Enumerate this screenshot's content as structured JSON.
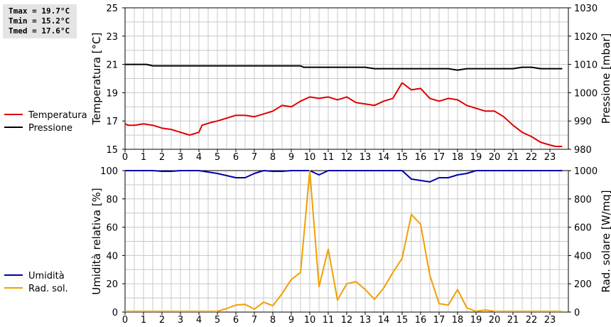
{
  "stats": {
    "tmax": "Tmax = 19.7°C",
    "tmin": "Tmin = 15.2°C",
    "tmed": "Tmed = 17.6°C"
  },
  "colors": {
    "temperatura": "#dd0000",
    "pressione": "#000000",
    "umidita": "#0000aa",
    "rad_sol": "#f0a000",
    "grid": "#c8c8c8"
  },
  "chart_data": [
    {
      "type": "line",
      "xlim": [
        0,
        24
      ],
      "x_ticks": [
        "0",
        "1",
        "2",
        "3",
        "4",
        "5",
        "6",
        "7",
        "8",
        "9",
        "10",
        "11",
        "12",
        "13",
        "14",
        "15",
        "16",
        "17",
        "18",
        "19",
        "20",
        "21",
        "22",
        "23"
      ],
      "ylabel": "Temperatura [°C]",
      "ylim": [
        15,
        25
      ],
      "y_ticks": [
        "15",
        "17",
        "19",
        "21",
        "23",
        "25"
      ],
      "y2label": "Pressione [mbar]",
      "y2lim": [
        980,
        1030
      ],
      "y2_ticks": [
        "980",
        "990",
        "1000",
        "1010",
        "1020",
        "1030"
      ],
      "grid": true,
      "series": [
        {
          "name": "Temperatura",
          "axis": "left",
          "x": [
            0,
            0.17,
            0.5,
            1,
            1.5,
            2,
            2.5,
            3,
            3.5,
            4,
            4.17,
            4.67,
            5,
            5.5,
            6,
            6.5,
            7,
            7.5,
            8,
            8.5,
            9,
            9.5,
            10,
            10.5,
            11,
            11.5,
            12,
            12.5,
            13,
            13.5,
            14,
            14.5,
            15,
            15.5,
            16,
            16.5,
            17,
            17.5,
            18,
            18.5,
            19,
            19.5,
            20,
            20.5,
            21,
            21.5,
            22,
            22.5,
            23,
            23.3,
            23.5,
            23.67
          ],
          "values": [
            16.8,
            16.7,
            16.7,
            16.8,
            16.7,
            16.5,
            16.4,
            16.2,
            16.0,
            16.2,
            16.7,
            16.9,
            17.0,
            17.2,
            17.4,
            17.4,
            17.3,
            17.5,
            17.7,
            18.1,
            18.0,
            18.4,
            18.7,
            18.6,
            18.7,
            18.5,
            18.7,
            18.3,
            18.2,
            18.1,
            18.4,
            18.6,
            19.7,
            19.2,
            19.3,
            18.6,
            18.4,
            18.6,
            18.5,
            18.1,
            17.9,
            17.7,
            17.7,
            17.3,
            16.7,
            16.2,
            15.9,
            15.5,
            15.3,
            15.2,
            15.2,
            15.2
          ]
        },
        {
          "name": "Pressione",
          "axis": "right",
          "x": [
            0,
            1,
            1.17,
            1.5,
            2,
            9,
            9.5,
            9.67,
            10,
            12.5,
            13,
            13.5,
            13.67,
            17,
            17.5,
            18,
            18.5,
            18.83,
            21,
            21.5,
            22,
            22.5,
            22.83,
            23.67
          ],
          "values": [
            1010,
            1010,
            1010,
            1009.5,
            1009.5,
            1009.5,
            1009.5,
            1009,
            1009,
            1009,
            1009,
            1008.5,
            1008.5,
            1008.5,
            1008.5,
            1008,
            1008.5,
            1008.5,
            1008.5,
            1009,
            1009,
            1008.5,
            1008.5,
            1008.5
          ]
        }
      ]
    },
    {
      "type": "line",
      "xlim": [
        0,
        24
      ],
      "x_ticks": [
        "0",
        "1",
        "2",
        "3",
        "4",
        "5",
        "6",
        "7",
        "8",
        "9",
        "10",
        "11",
        "12",
        "13",
        "14",
        "15",
        "16",
        "17",
        "18",
        "19",
        "20",
        "21",
        "22",
        "23"
      ],
      "ylabel": "Umidità relativa [%]",
      "ylim": [
        0,
        100
      ],
      "y_ticks": [
        "0",
        "20",
        "40",
        "60",
        "80",
        "100"
      ],
      "y2label": "Rad. solare [W/mq]",
      "y2lim": [
        0,
        1000
      ],
      "y2_ticks": [
        "0",
        "200",
        "400",
        "600",
        "800",
        "1000"
      ],
      "grid": true,
      "series": [
        {
          "name": "Umidità",
          "axis": "left",
          "x": [
            0,
            1.5,
            2,
            2.5,
            3,
            4,
            4.5,
            5,
            5.5,
            6,
            6.5,
            7,
            7.5,
            8,
            8.5,
            9,
            9.5,
            10,
            10.5,
            11,
            15,
            15.5,
            16,
            16.5,
            17,
            17.5,
            18,
            18.5,
            19,
            23.67
          ],
          "values": [
            100,
            100,
            99.5,
            99.5,
            100,
            100,
            99,
            98,
            96.5,
            95,
            95,
            98,
            100,
            99.5,
            99.5,
            100,
            100,
            100,
            97,
            100,
            100,
            94,
            93,
            92,
            95,
            95,
            97,
            98,
            100,
            100
          ]
        },
        {
          "name": "Rad. sol.",
          "axis": "right",
          "x": [
            0,
            5,
            5.5,
            6,
            6.5,
            7,
            7.5,
            8,
            8.5,
            9,
            9.5,
            10,
            10.5,
            11,
            11.5,
            12,
            12.5,
            13,
            13.5,
            14,
            14.5,
            15,
            15.5,
            16,
            16.5,
            17,
            17.5,
            18,
            18.5,
            19,
            19.5,
            20,
            23.67
          ],
          "values": [
            5,
            5,
            25,
            50,
            55,
            20,
            70,
            45,
            130,
            230,
            280,
            1000,
            180,
            445,
            85,
            200,
            215,
            160,
            90,
            170,
            280,
            380,
            690,
            620,
            260,
            60,
            50,
            160,
            30,
            5,
            15,
            5,
            5
          ]
        }
      ]
    }
  ]
}
